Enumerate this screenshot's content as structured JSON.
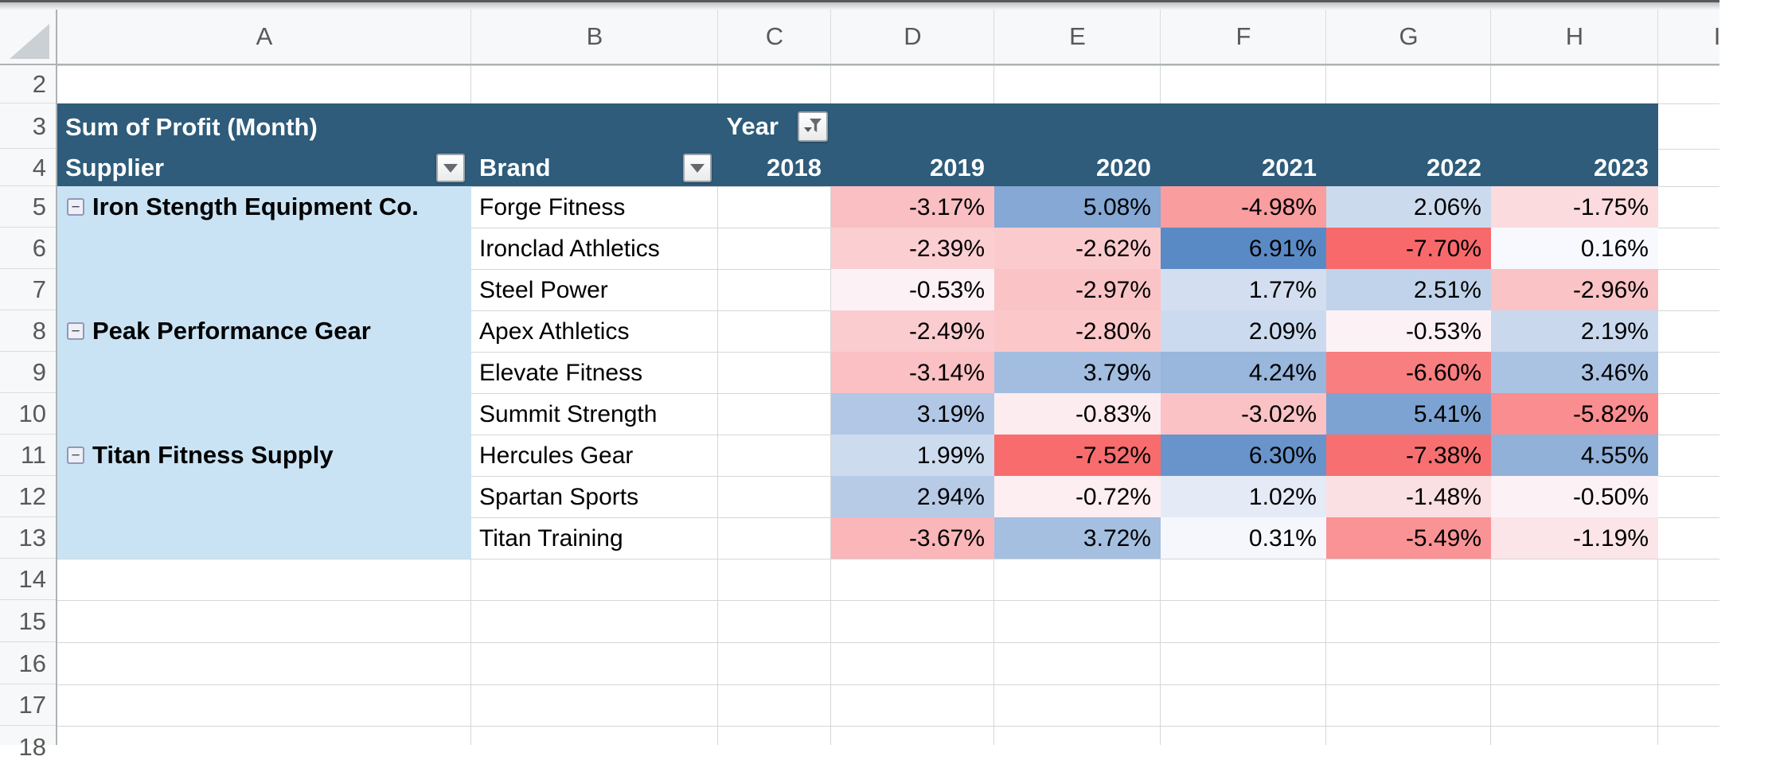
{
  "sheet": {
    "column_letters": [
      "A",
      "B",
      "C",
      "D",
      "E",
      "F",
      "G",
      "H",
      "I"
    ],
    "row_numbers": [
      "2",
      "3",
      "4",
      "5",
      "6",
      "7",
      "8",
      "9",
      "10",
      "11",
      "12",
      "13",
      "14",
      "15",
      "16",
      "17",
      "18"
    ]
  },
  "pivot": {
    "title": "Sum of Profit (Month)",
    "filter_field_label": "Year",
    "row_field_label": "Supplier",
    "column_field_label": "Brand",
    "collapse_glyph": "−",
    "year_columns": [
      "2018",
      "2019",
      "2020",
      "2021",
      "2022",
      "2023"
    ],
    "groups": [
      {
        "supplier": "Iron Stength Equipment Co.",
        "brands": [
          {
            "name": "Forge Fitness",
            "values": [
              "",
              "-3.17%",
              "5.08%",
              "-4.98%",
              "2.06%",
              "-1.75%"
            ]
          },
          {
            "name": "Ironclad Athletics",
            "values": [
              "",
              "-2.39%",
              "-2.62%",
              "6.91%",
              "-7.70%",
              "0.16%"
            ]
          },
          {
            "name": "Steel Power",
            "values": [
              "",
              "-0.53%",
              "-2.97%",
              "1.77%",
              "2.51%",
              "-2.96%"
            ]
          }
        ]
      },
      {
        "supplier": "Peak Performance Gear",
        "brands": [
          {
            "name": "Apex Athletics",
            "values": [
              "",
              "-2.49%",
              "-2.80%",
              "2.09%",
              "-0.53%",
              "2.19%"
            ]
          },
          {
            "name": "Elevate Fitness",
            "values": [
              "",
              "-3.14%",
              "3.79%",
              "4.24%",
              "-6.60%",
              "3.46%"
            ]
          },
          {
            "name": "Summit Strength",
            "values": [
              "",
              "3.19%",
              "-0.83%",
              "-3.02%",
              "5.41%",
              "-5.82%"
            ]
          }
        ]
      },
      {
        "supplier": "Titan Fitness Supply",
        "brands": [
          {
            "name": "Hercules Gear",
            "values": [
              "",
              "1.99%",
              "-7.52%",
              "6.30%",
              "-7.38%",
              "4.55%"
            ]
          },
          {
            "name": "Spartan Sports",
            "values": [
              "",
              "2.94%",
              "-0.72%",
              "1.02%",
              "-1.48%",
              "-0.50%"
            ]
          },
          {
            "name": "Titan Training",
            "values": [
              "",
              "-3.67%",
              "3.72%",
              "0.31%",
              "-5.49%",
              "-1.19%"
            ]
          }
        ]
      }
    ],
    "colors": {
      "header_bg": "#2E5C7A",
      "header_text": "#FFFFFF",
      "supplier_col_bg": "#C9E3F4",
      "scale_negative": "#F8696B",
      "scale_midpoint": "#FCFCFF",
      "scale_positive": "#5A8AC6"
    },
    "scale_domain": {
      "min": -7.7,
      "max": 6.91
    }
  }
}
